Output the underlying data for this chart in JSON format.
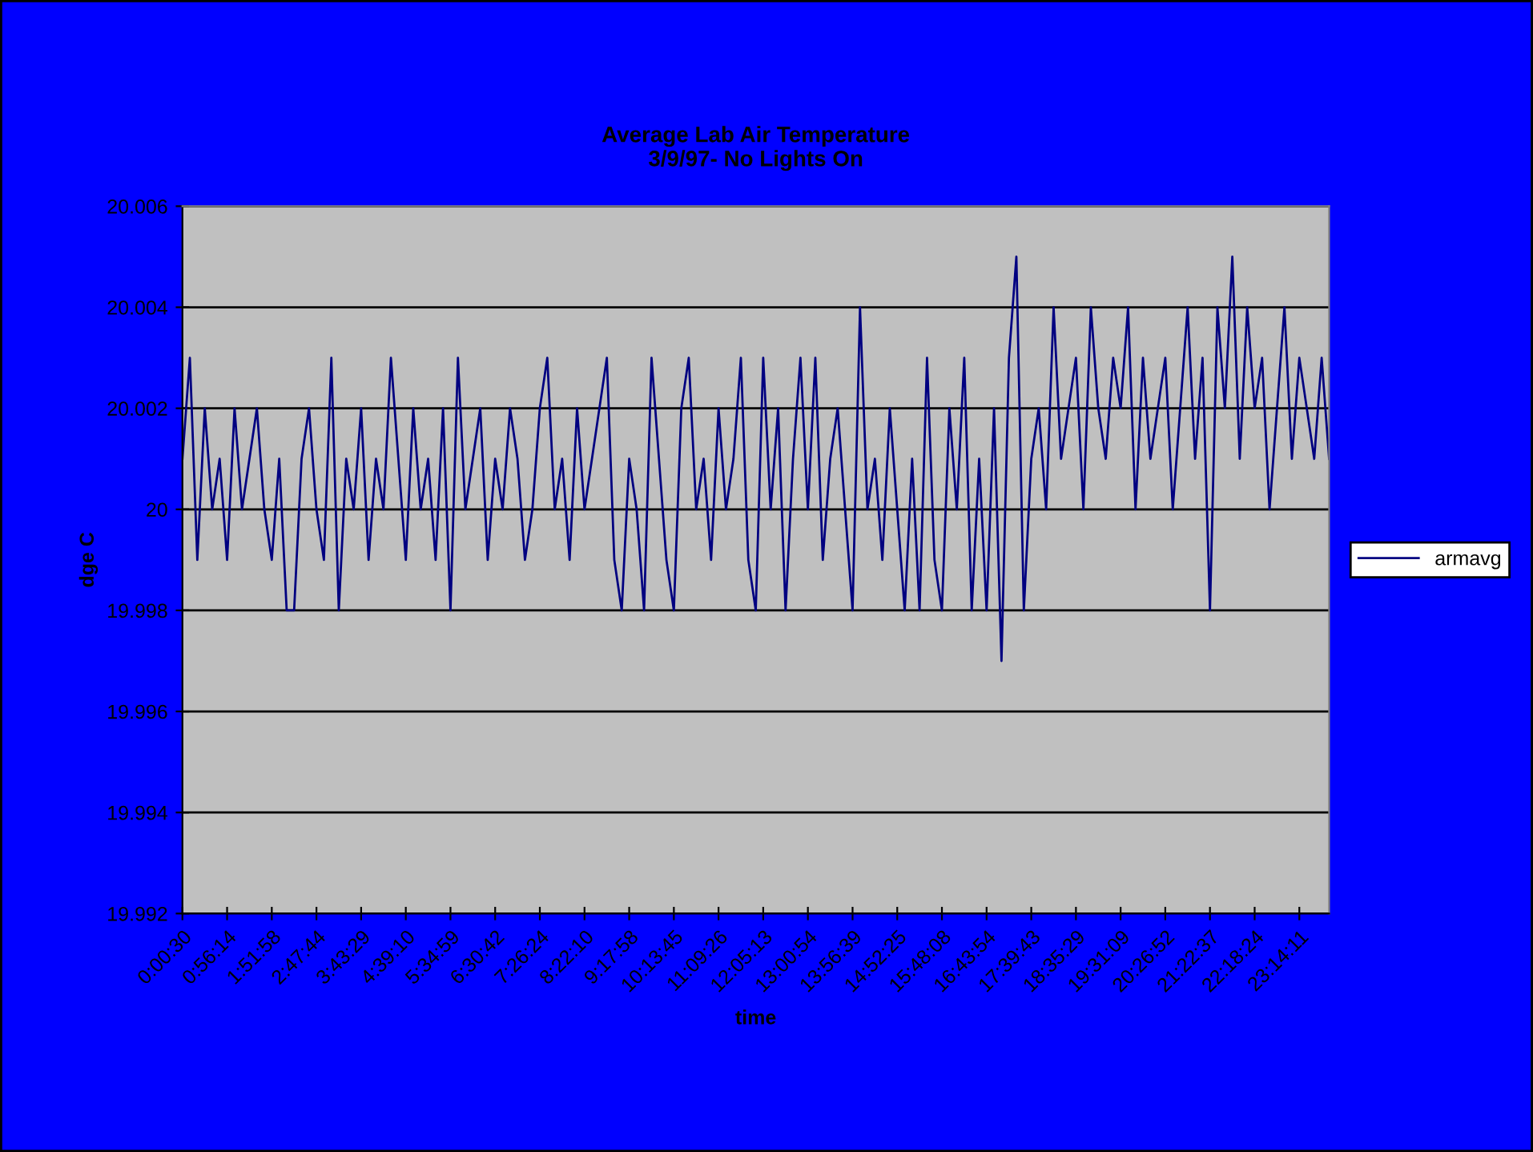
{
  "chart_data": {
    "type": "line",
    "title": "Average Lab Air Temperature\n3/9/97- No Lights On",
    "xlabel": "time",
    "ylabel": "dge C",
    "categories": [
      "0:00:30",
      null,
      null,
      null,
      null,
      null,
      "0:56:14",
      null,
      null,
      null,
      null,
      null,
      "1:51:58",
      null,
      null,
      null,
      null,
      null,
      "2:47:44",
      null,
      null,
      null,
      null,
      null,
      "3:43:29",
      null,
      null,
      null,
      null,
      null,
      "4:39:10",
      null,
      null,
      null,
      null,
      null,
      "5:34:59",
      null,
      null,
      null,
      null,
      null,
      "6:30:42",
      null,
      null,
      null,
      null,
      null,
      "7:26:24",
      null,
      null,
      null,
      null,
      null,
      "8:22:10",
      null,
      null,
      null,
      null,
      null,
      "9:17:58",
      null,
      null,
      null,
      null,
      null,
      "10:13:45",
      null,
      null,
      null,
      null,
      null,
      "11:09:26",
      null,
      null,
      null,
      null,
      null,
      "12:05:13",
      null,
      null,
      null,
      null,
      null,
      "13:00:54",
      null,
      null,
      null,
      null,
      null,
      "13:56:39",
      null,
      null,
      null,
      null,
      null,
      "14:52:25",
      null,
      null,
      null,
      null,
      null,
      "15:48:08",
      null,
      null,
      null,
      null,
      null,
      "16:43:54",
      null,
      null,
      null,
      null,
      null,
      "17:39:43",
      null,
      null,
      null,
      null,
      null,
      "18:35:29",
      null,
      null,
      null,
      null,
      null,
      "19:31:09",
      null,
      null,
      null,
      null,
      null,
      "20:26:52",
      null,
      null,
      null,
      null,
      null,
      "21:22:37",
      null,
      null,
      null,
      null,
      null,
      "22:18:24",
      null,
      null,
      null,
      null,
      null,
      "23:14:11",
      null,
      null,
      null,
      null
    ],
    "series": [
      {
        "name": "armavg",
        "color": "#000080",
        "values": [
          20.001,
          20.003,
          19.999,
          20.002,
          20.0,
          20.001,
          19.999,
          20.002,
          20.0,
          20.001,
          20.002,
          20.0,
          19.999,
          20.001,
          19.998,
          19.998,
          20.001,
          20.002,
          20.0,
          19.999,
          20.003,
          19.998,
          20.001,
          20.0,
          20.002,
          19.999,
          20.001,
          20.0,
          20.003,
          20.001,
          19.999,
          20.002,
          20.0,
          20.001,
          19.999,
          20.002,
          19.998,
          20.003,
          20.0,
          20.001,
          20.002,
          19.999,
          20.001,
          20.0,
          20.002,
          20.001,
          19.999,
          20.0,
          20.002,
          20.003,
          20.0,
          20.001,
          19.999,
          20.002,
          20.0,
          20.001,
          20.002,
          20.003,
          19.999,
          19.998,
          20.001,
          20.0,
          19.998,
          20.003,
          20.001,
          19.999,
          19.998,
          20.002,
          20.003,
          20.0,
          20.001,
          19.999,
          20.002,
          20.0,
          20.001,
          20.003,
          19.999,
          19.998,
          20.003,
          20.0,
          20.002,
          19.998,
          20.001,
          20.003,
          20.0,
          20.003,
          19.999,
          20.001,
          20.002,
          20.0,
          19.998,
          20.004,
          20.0,
          20.001,
          19.999,
          20.002,
          20.0,
          19.998,
          20.001,
          19.998,
          20.003,
          19.999,
          19.998,
          20.002,
          20.0,
          20.003,
          19.998,
          20.001,
          19.998,
          20.002,
          19.997,
          20.003,
          20.005,
          19.998,
          20.001,
          20.002,
          20.0,
          20.004,
          20.001,
          20.002,
          20.003,
          20.0,
          20.004,
          20.002,
          20.001,
          20.003,
          20.002,
          20.004,
          20.0,
          20.003,
          20.001,
          20.002,
          20.003,
          20.0,
          20.002,
          20.004,
          20.001,
          20.003,
          19.998,
          20.004,
          20.002,
          20.005,
          20.001,
          20.004,
          20.002,
          20.003,
          20.0,
          20.002,
          20.004,
          20.001,
          20.003,
          20.002,
          20.001,
          20.003,
          20.001
        ]
      }
    ],
    "ylim": [
      19.992,
      20.006
    ],
    "yticks": [
      19.992,
      19.994,
      19.996,
      19.998,
      20,
      20.002,
      20.004,
      20.006
    ],
    "grid": "y",
    "legend": "right",
    "line_style": "solid",
    "marker": "none"
  }
}
